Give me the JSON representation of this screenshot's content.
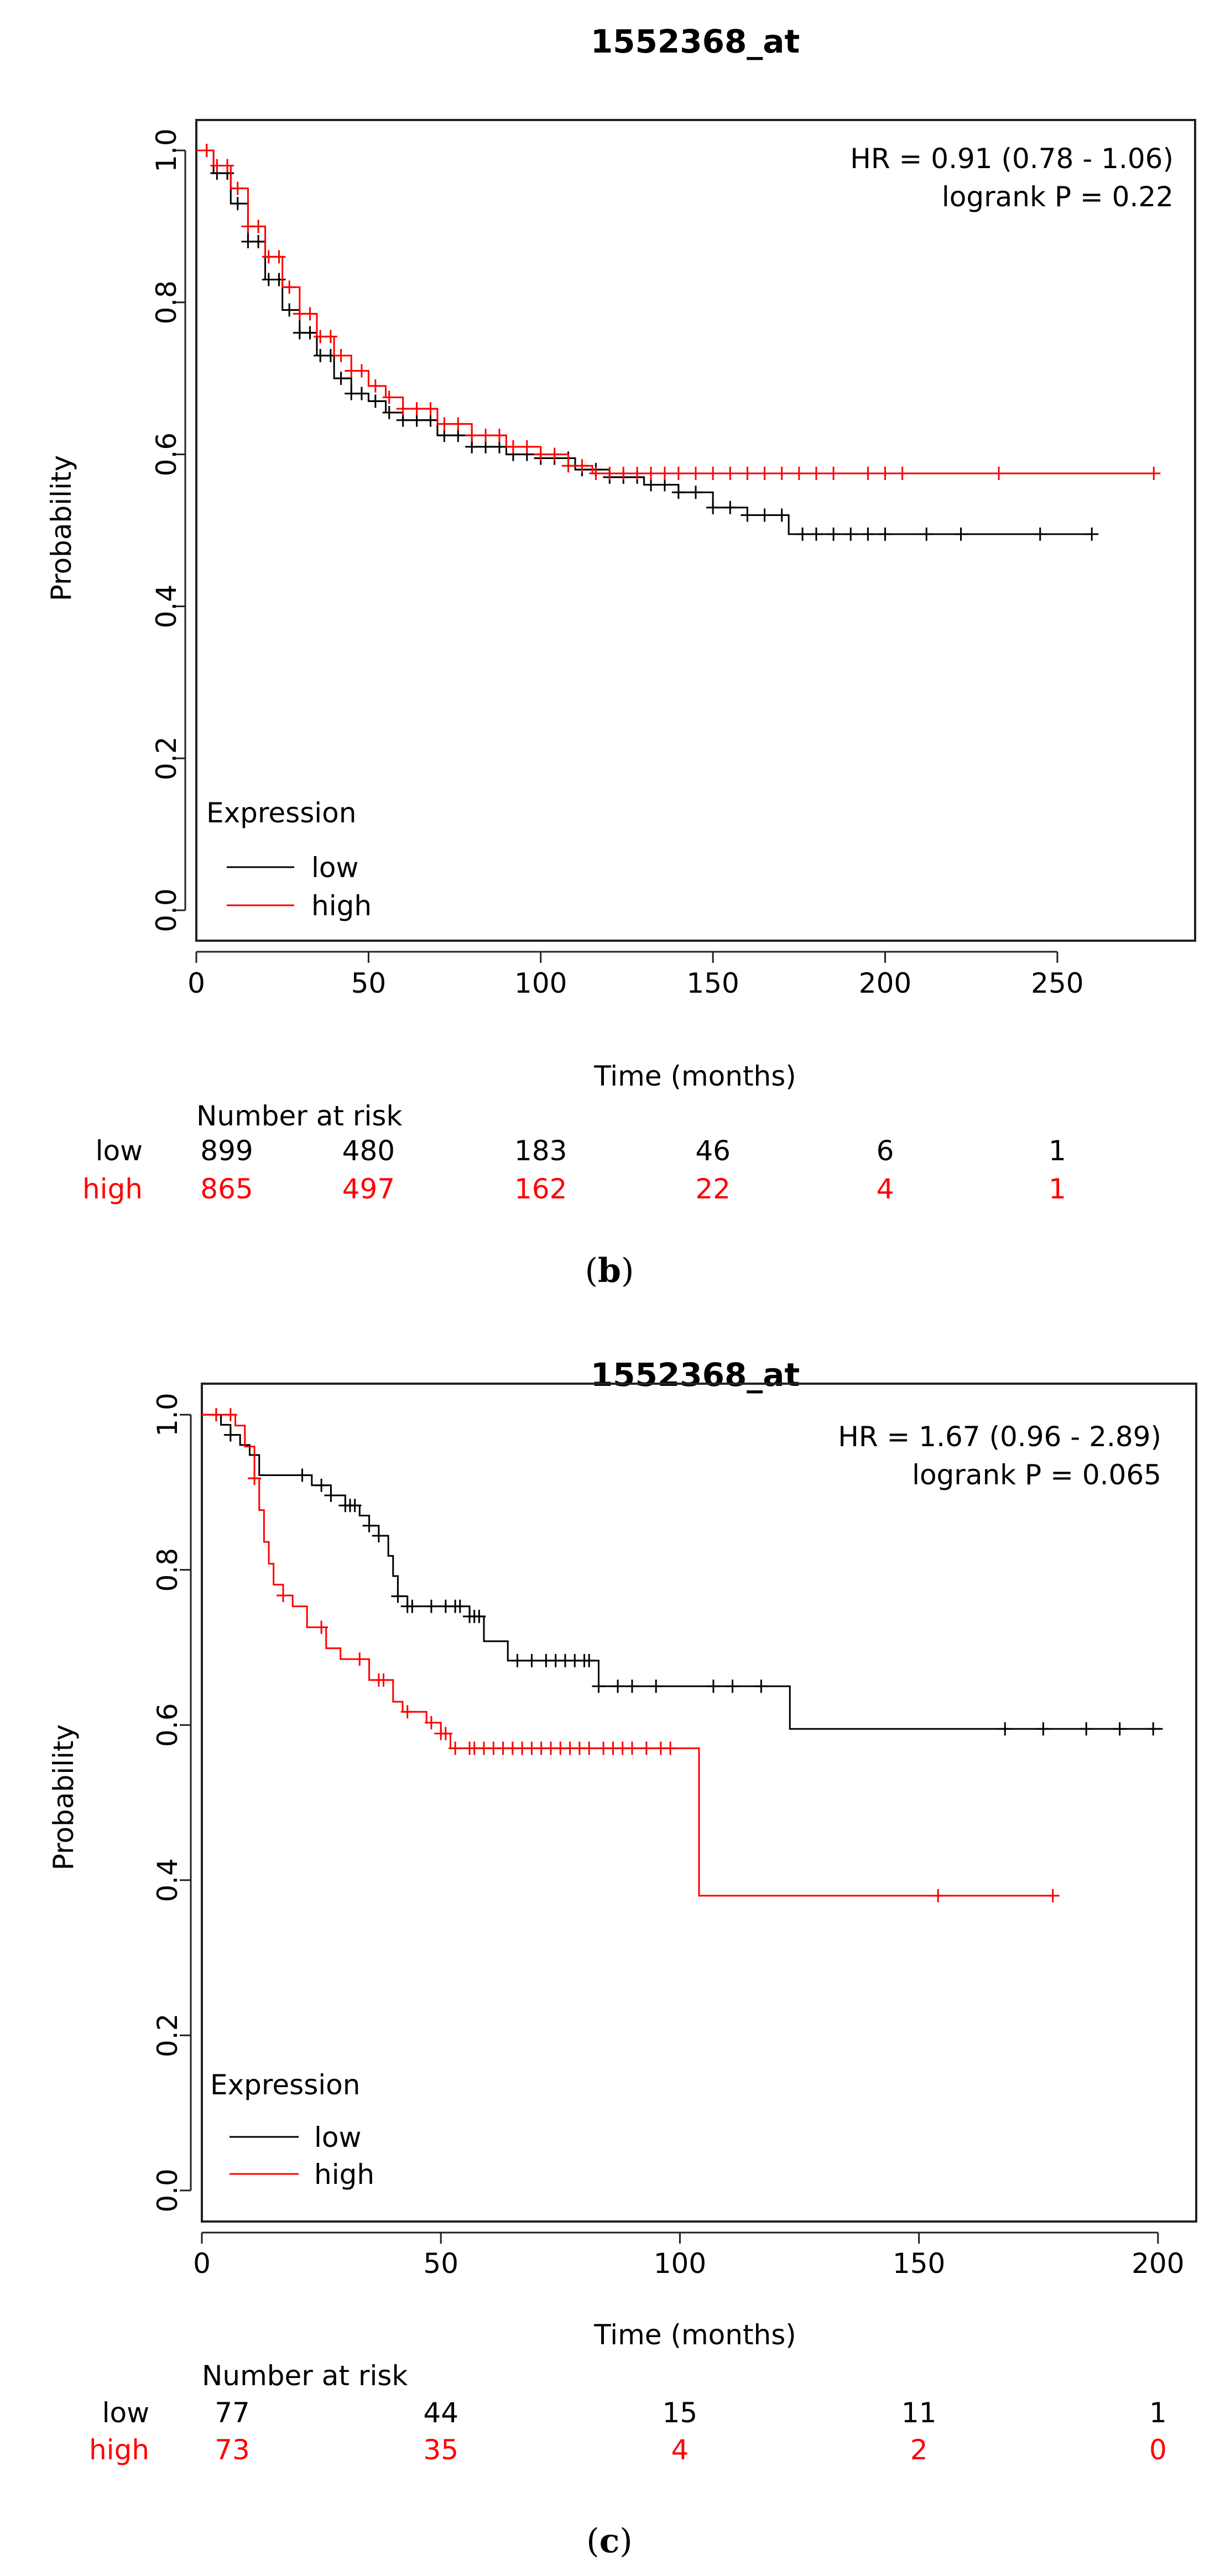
{
  "chart_data": [
    {
      "type": "line",
      "panel_label": "(b)",
      "panel_letter": "b",
      "title": "1552368_at",
      "xlabel": "Time (months)",
      "ylabel": "Probability",
      "xlim": [
        0,
        290
      ],
      "ylim": [
        -0.04,
        1.04
      ],
      "xticks": [
        0,
        50,
        100,
        150,
        200,
        250
      ],
      "yticks": [
        0.0,
        0.2,
        0.4,
        0.6,
        0.8,
        1.0
      ],
      "xtick_labels": [
        "0",
        "50",
        "100",
        "150",
        "200",
        "250"
      ],
      "ytick_labels": [
        "0.0",
        "0.2",
        "0.4",
        "0.6",
        "0.8",
        "1.0"
      ],
      "annotation": [
        "HR = 0.91 (0.78 - 1.06)",
        "logrank P = 0.22"
      ],
      "legend": {
        "title": "Expression",
        "position": "bottom-left",
        "entries": [
          {
            "label": "low",
            "color": "#000000"
          },
          {
            "label": "high",
            "color": "#ff0000"
          }
        ]
      },
      "series": [
        {
          "name": "low",
          "color": "#000000",
          "x": [
            0,
            5,
            10,
            15,
            20,
            25,
            30,
            35,
            40,
            45,
            50,
            55,
            60,
            70,
            80,
            90,
            100,
            110,
            120,
            130,
            140,
            150,
            160,
            170,
            172,
            260
          ],
          "y": [
            1.0,
            0.97,
            0.93,
            0.88,
            0.83,
            0.79,
            0.76,
            0.73,
            0.7,
            0.68,
            0.67,
            0.655,
            0.645,
            0.625,
            0.61,
            0.6,
            0.595,
            0.58,
            0.57,
            0.56,
            0.55,
            0.53,
            0.52,
            0.52,
            0.495,
            0.495
          ],
          "censor_x": [
            3,
            6,
            9,
            12,
            15,
            18,
            21,
            24,
            27,
            30,
            33,
            36,
            39,
            42,
            45,
            48,
            52,
            56,
            60,
            64,
            68,
            72,
            76,
            80,
            84,
            88,
            92,
            96,
            100,
            104,
            108,
            112,
            116,
            120,
            124,
            128,
            132,
            136,
            140,
            145,
            150,
            155,
            160,
            165,
            170,
            176,
            180,
            185,
            190,
            195,
            200,
            212,
            222,
            245,
            260
          ]
        },
        {
          "name": "high",
          "color": "#ff0000",
          "x": [
            0,
            5,
            10,
            15,
            20,
            25,
            30,
            35,
            40,
            45,
            50,
            55,
            60,
            70,
            80,
            90,
            100,
            108,
            115,
            278
          ],
          "y": [
            1.0,
            0.98,
            0.95,
            0.9,
            0.86,
            0.82,
            0.785,
            0.755,
            0.73,
            0.71,
            0.69,
            0.675,
            0.66,
            0.64,
            0.625,
            0.61,
            0.6,
            0.585,
            0.575,
            0.575
          ],
          "censor_x": [
            3,
            6,
            9,
            12,
            15,
            18,
            21,
            24,
            27,
            30,
            33,
            36,
            39,
            42,
            45,
            48,
            52,
            56,
            60,
            64,
            68,
            72,
            76,
            80,
            84,
            88,
            92,
            96,
            100,
            104,
            108,
            112,
            116,
            120,
            124,
            128,
            132,
            136,
            140,
            145,
            150,
            155,
            160,
            165,
            170,
            175,
            180,
            185,
            195,
            200,
            205,
            233,
            278
          ]
        }
      ],
      "risk_table": {
        "title": "Number at risk",
        "times": [
          0,
          50,
          100,
          150,
          200,
          250
        ],
        "rows": [
          {
            "label": "low",
            "color": "#000000",
            "counts": [
              "899",
              "480",
              "183",
              "46",
              "6",
              "1"
            ]
          },
          {
            "label": "high",
            "color": "#ff0000",
            "counts": [
              "865",
              "497",
              "162",
              "22",
              "4",
              "1"
            ]
          }
        ]
      }
    },
    {
      "type": "line",
      "panel_label": "(c)",
      "panel_letter": "c",
      "title": "1552368_at",
      "xlabel": "Time (months)",
      "ylabel": "Probability",
      "xlim": [
        0,
        208
      ],
      "ylim": [
        -0.04,
        1.04
      ],
      "xticks": [
        0,
        50,
        100,
        150,
        200
      ],
      "yticks": [
        0.0,
        0.2,
        0.4,
        0.6,
        0.8,
        1.0
      ],
      "xtick_labels": [
        "0",
        "50",
        "100",
        "150",
        "200"
      ],
      "ytick_labels": [
        "0.0",
        "0.2",
        "0.4",
        "0.6",
        "0.8",
        "1.0"
      ],
      "annotation": [
        "HR = 1.67 (0.96 - 2.89)",
        "logrank P = 0.065"
      ],
      "legend": {
        "title": "Expression",
        "position": "bottom-left",
        "entries": [
          {
            "label": "low",
            "color": "#000000"
          },
          {
            "label": "high",
            "color": "#ff0000"
          }
        ]
      },
      "series": [
        {
          "name": "low",
          "color": "#000000",
          "x": [
            0,
            4,
            6,
            8,
            10,
            12,
            23,
            27,
            30,
            33,
            35,
            37,
            39,
            40,
            41,
            43,
            50,
            56,
            59,
            64,
            80,
            83,
            100,
            123,
            201
          ],
          "y": [
            1.0,
            0.987,
            0.974,
            0.961,
            0.948,
            0.922,
            0.909,
            0.896,
            0.883,
            0.87,
            0.857,
            0.844,
            0.818,
            0.792,
            0.766,
            0.753,
            0.753,
            0.74,
            0.708,
            0.683,
            0.683,
            0.65,
            0.65,
            0.595,
            0.595
          ],
          "censor_x": [
            3,
            6,
            21,
            25,
            27,
            30,
            31,
            32,
            35,
            37,
            41,
            43,
            44,
            48,
            51,
            53,
            54,
            56,
            57,
            58,
            66,
            69,
            72,
            74,
            76,
            78,
            80,
            81,
            83,
            87,
            90,
            95,
            107,
            111,
            117,
            168,
            176,
            185,
            192,
            199
          ]
        },
        {
          "name": "high",
          "color": "#ff0000",
          "x": [
            0,
            7,
            9,
            11,
            12,
            13,
            14,
            15,
            17,
            19,
            22,
            26,
            29,
            35,
            40,
            42,
            47,
            50,
            52,
            104,
            178
          ],
          "y": [
            1.0,
            0.986,
            0.959,
            0.918,
            0.877,
            0.836,
            0.808,
            0.781,
            0.767,
            0.753,
            0.726,
            0.699,
            0.685,
            0.658,
            0.63,
            0.617,
            0.603,
            0.589,
            0.57,
            0.38,
            0.38
          ],
          "censor_x": [
            3,
            6,
            11,
            17,
            25,
            33,
            37,
            38,
            43,
            48,
            50,
            51,
            53,
            56,
            57,
            59,
            61,
            63,
            65,
            67,
            69,
            71,
            73,
            75,
            77,
            79,
            81,
            84,
            86,
            88,
            90,
            93,
            96,
            98,
            154,
            178
          ]
        }
      ],
      "risk_table": {
        "title": "Number at risk",
        "times": [
          0,
          50,
          100,
          150,
          200
        ],
        "rows": [
          {
            "label": "low",
            "color": "#000000",
            "counts": [
              "77",
              "44",
              "15",
              "11",
              "1"
            ]
          },
          {
            "label": "high",
            "color": "#ff0000",
            "counts": [
              "73",
              "35",
              "4",
              "2",
              "0"
            ]
          }
        ]
      }
    }
  ]
}
